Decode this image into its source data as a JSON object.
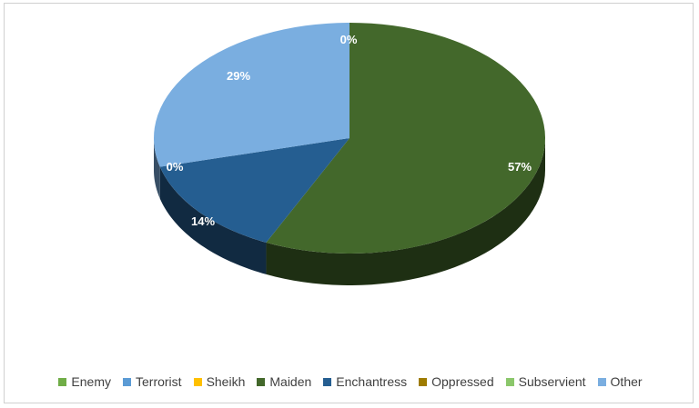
{
  "chart_data": {
    "type": "pie",
    "title": "",
    "three_d": true,
    "legend_position": "bottom",
    "categories": [
      "Enemy",
      "Terrorist",
      "Sheikh",
      "Maiden",
      "Enchantress",
      "Oppressed",
      "Subservient",
      "Other"
    ],
    "values": [
      0,
      0,
      0,
      57,
      14,
      0,
      0,
      29
    ],
    "labels": [
      "",
      "",
      "",
      "57%",
      "14%",
      "0%",
      "",
      "29%"
    ],
    "extra_labels": [
      "0%"
    ],
    "colors": [
      "#70ad47",
      "#5b9bd5",
      "#ffc000",
      "#43682b",
      "#255e91",
      "#9e7b00",
      "#8bc76b",
      "#7aaee0"
    ]
  }
}
